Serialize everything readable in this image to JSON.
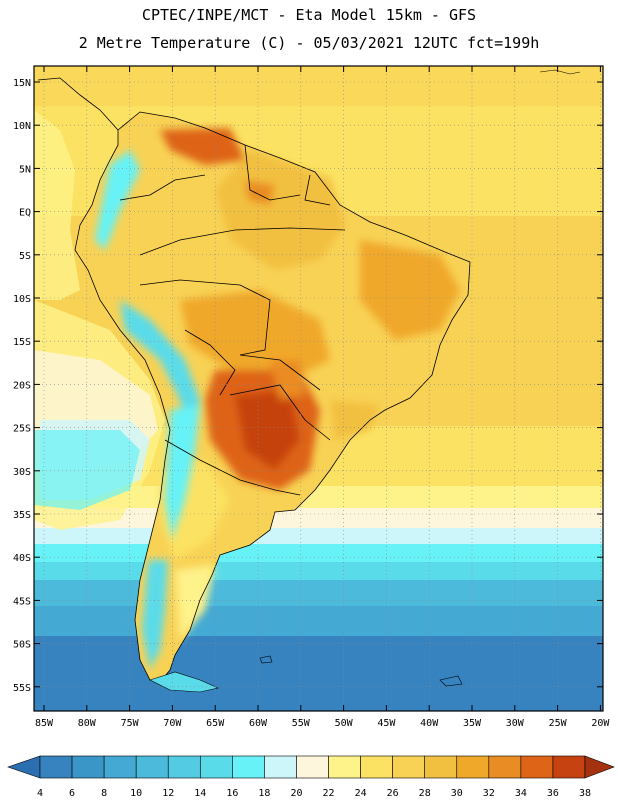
{
  "header": {
    "title_line1": "CPTEC/INPE/MCT -  Eta Model 15km - GFS",
    "title_line2": "2 Metre Temperature (C) - 05/03/2021 12UTC fct=199h"
  },
  "map": {
    "lat_labels": [
      "15N",
      "10N",
      "5N",
      "EQ",
      "5S",
      "10S",
      "15S",
      "20S",
      "25S",
      "30S",
      "35S",
      "40S",
      "45S",
      "50S",
      "55S"
    ],
    "lon_labels": [
      "85W",
      "80W",
      "75W",
      "70W",
      "65W",
      "60W",
      "55W",
      "50W",
      "45W",
      "40W",
      "35W",
      "30W",
      "25W",
      "20W"
    ]
  },
  "legend": {
    "values": [
      "4",
      "6",
      "8",
      "10",
      "12",
      "14",
      "16",
      "18",
      "20",
      "22",
      "24",
      "26",
      "28",
      "30",
      "32",
      "34",
      "36",
      "38"
    ],
    "colors": [
      "#2c6fb0",
      "#3683bf",
      "#3b96c8",
      "#44a9d3",
      "#4cbadb",
      "#53cbe3",
      "#5adbe9",
      "#66f2f6",
      "#cdf6fb",
      "#fdf6dc",
      "#fef28a",
      "#fce262",
      "#f8d255",
      "#f2c040",
      "#f0a82a",
      "#ea8c24",
      "#de6418",
      "#c64210",
      "#a43210"
    ]
  }
}
